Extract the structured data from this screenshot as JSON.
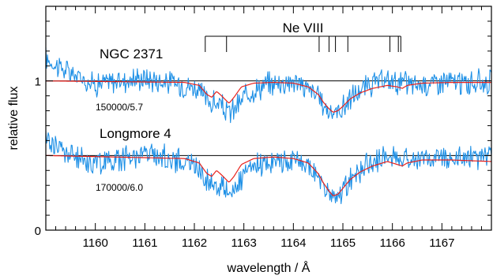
{
  "chart_data": {
    "type": "line",
    "xlabel": "wavelength / Å",
    "ylabel": "relative flux",
    "xlim": [
      1159.0,
      1168.0
    ],
    "ylim": [
      0.0,
      1.5
    ],
    "x_ticks": [
      1160,
      1161,
      1162,
      1163,
      1164,
      1165,
      1166,
      1167
    ],
    "x_tick_labels": [
      "1160",
      "1161",
      "1162",
      "1163",
      "1164",
      "1165",
      "1166",
      "1167"
    ],
    "y_ticks": [
      0,
      1
    ],
    "y_tick_labels": [
      "0",
      "1"
    ],
    "grid": false,
    "colors": {
      "observed": "#1e90e6",
      "model": "#e8211c",
      "continuum": "#000000"
    },
    "line_marker": {
      "label": "Ne VIII",
      "wavelengths": [
        1162.22,
        1162.65,
        1164.52,
        1164.72,
        1164.85,
        1165.1,
        1165.95,
        1166.12,
        1166.17
      ]
    },
    "panels": [
      {
        "star": "NGC 2371",
        "params": "150000/5.7",
        "continuum": 1.0,
        "model_profile": [
          [
            1159.0,
            1.0
          ],
          [
            1161.8,
            0.99
          ],
          [
            1162.1,
            0.97
          ],
          [
            1162.25,
            0.91
          ],
          [
            1162.35,
            0.89
          ],
          [
            1162.45,
            0.93
          ],
          [
            1162.55,
            0.9
          ],
          [
            1162.7,
            0.85
          ],
          [
            1162.8,
            0.89
          ],
          [
            1162.95,
            0.96
          ],
          [
            1163.2,
            0.985
          ],
          [
            1163.6,
            0.99
          ],
          [
            1164.0,
            0.985
          ],
          [
            1164.3,
            0.96
          ],
          [
            1164.5,
            0.91
          ],
          [
            1164.6,
            0.86
          ],
          [
            1164.7,
            0.82
          ],
          [
            1164.8,
            0.79
          ],
          [
            1164.9,
            0.8
          ],
          [
            1165.0,
            0.83
          ],
          [
            1165.15,
            0.88
          ],
          [
            1165.35,
            0.92
          ],
          [
            1165.6,
            0.95
          ],
          [
            1165.9,
            0.97
          ],
          [
            1166.1,
            0.96
          ],
          [
            1166.2,
            0.95
          ],
          [
            1166.3,
            0.97
          ],
          [
            1166.6,
            0.985
          ],
          [
            1167.2,
            0.99
          ],
          [
            1168.0,
            0.99
          ]
        ],
        "observed_profile": [
          [
            1159.0,
            1.15
          ],
          [
            1159.5,
            1.05
          ],
          [
            1160.0,
            0.98
          ],
          [
            1160.5,
            1.0
          ],
          [
            1161.0,
            1.02
          ],
          [
            1161.5,
            0.99
          ],
          [
            1162.0,
            0.96
          ],
          [
            1162.3,
            0.86
          ],
          [
            1162.5,
            0.84
          ],
          [
            1162.7,
            0.78
          ],
          [
            1162.9,
            0.84
          ],
          [
            1163.1,
            0.93
          ],
          [
            1163.5,
            0.98
          ],
          [
            1164.0,
            1.0
          ],
          [
            1164.4,
            0.93
          ],
          [
            1164.6,
            0.84
          ],
          [
            1164.8,
            0.78
          ],
          [
            1165.0,
            0.82
          ],
          [
            1165.2,
            0.9
          ],
          [
            1165.6,
            0.98
          ],
          [
            1166.0,
            1.0
          ],
          [
            1166.5,
            0.97
          ],
          [
            1167.0,
            1.0
          ],
          [
            1167.5,
            0.98
          ],
          [
            1168.0,
            1.0
          ]
        ]
      },
      {
        "star": "Longmore 4",
        "params": "170000/6.0",
        "continuum": 0.5,
        "model_profile": [
          [
            1159.0,
            0.5
          ],
          [
            1161.8,
            0.48
          ],
          [
            1162.1,
            0.45
          ],
          [
            1162.25,
            0.38
          ],
          [
            1162.35,
            0.36
          ],
          [
            1162.45,
            0.4
          ],
          [
            1162.55,
            0.37
          ],
          [
            1162.7,
            0.32
          ],
          [
            1162.8,
            0.36
          ],
          [
            1162.95,
            0.44
          ],
          [
            1163.2,
            0.48
          ],
          [
            1163.6,
            0.49
          ],
          [
            1164.0,
            0.48
          ],
          [
            1164.3,
            0.45
          ],
          [
            1164.5,
            0.38
          ],
          [
            1164.6,
            0.32
          ],
          [
            1164.7,
            0.27
          ],
          [
            1164.8,
            0.23
          ],
          [
            1164.9,
            0.24
          ],
          [
            1165.0,
            0.28
          ],
          [
            1165.15,
            0.34
          ],
          [
            1165.35,
            0.39
          ],
          [
            1165.6,
            0.43
          ],
          [
            1165.9,
            0.46
          ],
          [
            1166.1,
            0.44
          ],
          [
            1166.2,
            0.43
          ],
          [
            1166.3,
            0.45
          ],
          [
            1166.6,
            0.47
          ],
          [
            1167.2,
            0.47
          ],
          [
            1168.0,
            0.46
          ]
        ],
        "observed_profile": [
          [
            1159.0,
            0.62
          ],
          [
            1159.5,
            0.5
          ],
          [
            1160.0,
            0.45
          ],
          [
            1160.5,
            0.48
          ],
          [
            1161.0,
            0.52
          ],
          [
            1161.5,
            0.48
          ],
          [
            1162.0,
            0.44
          ],
          [
            1162.3,
            0.32
          ],
          [
            1162.5,
            0.3
          ],
          [
            1162.7,
            0.26
          ],
          [
            1162.9,
            0.3
          ],
          [
            1163.1,
            0.4
          ],
          [
            1163.5,
            0.46
          ],
          [
            1164.0,
            0.47
          ],
          [
            1164.4,
            0.4
          ],
          [
            1164.6,
            0.3
          ],
          [
            1164.8,
            0.2
          ],
          [
            1165.0,
            0.26
          ],
          [
            1165.2,
            0.36
          ],
          [
            1165.6,
            0.46
          ],
          [
            1166.0,
            0.5
          ],
          [
            1166.5,
            0.47
          ],
          [
            1167.0,
            0.5
          ],
          [
            1167.5,
            0.48
          ],
          [
            1168.0,
            0.5
          ]
        ]
      }
    ]
  }
}
